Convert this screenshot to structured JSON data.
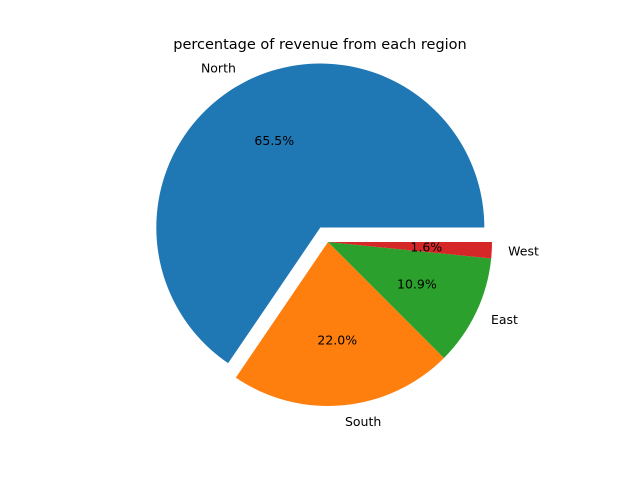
{
  "chart_data": {
    "type": "pie",
    "title": "percentage of revenue from each region",
    "categories": [
      "North",
      "South",
      "East",
      "West"
    ],
    "values": [
      65.5,
      22.0,
      10.9,
      1.6
    ],
    "percent_labels": [
      "65.5%",
      "22.0%",
      "10.9%",
      "1.6%"
    ],
    "colors": [
      "#1f77b4",
      "#ff7f0e",
      "#2ca02c",
      "#d62728"
    ],
    "exploded": [
      "North"
    ],
    "legend": "none"
  }
}
